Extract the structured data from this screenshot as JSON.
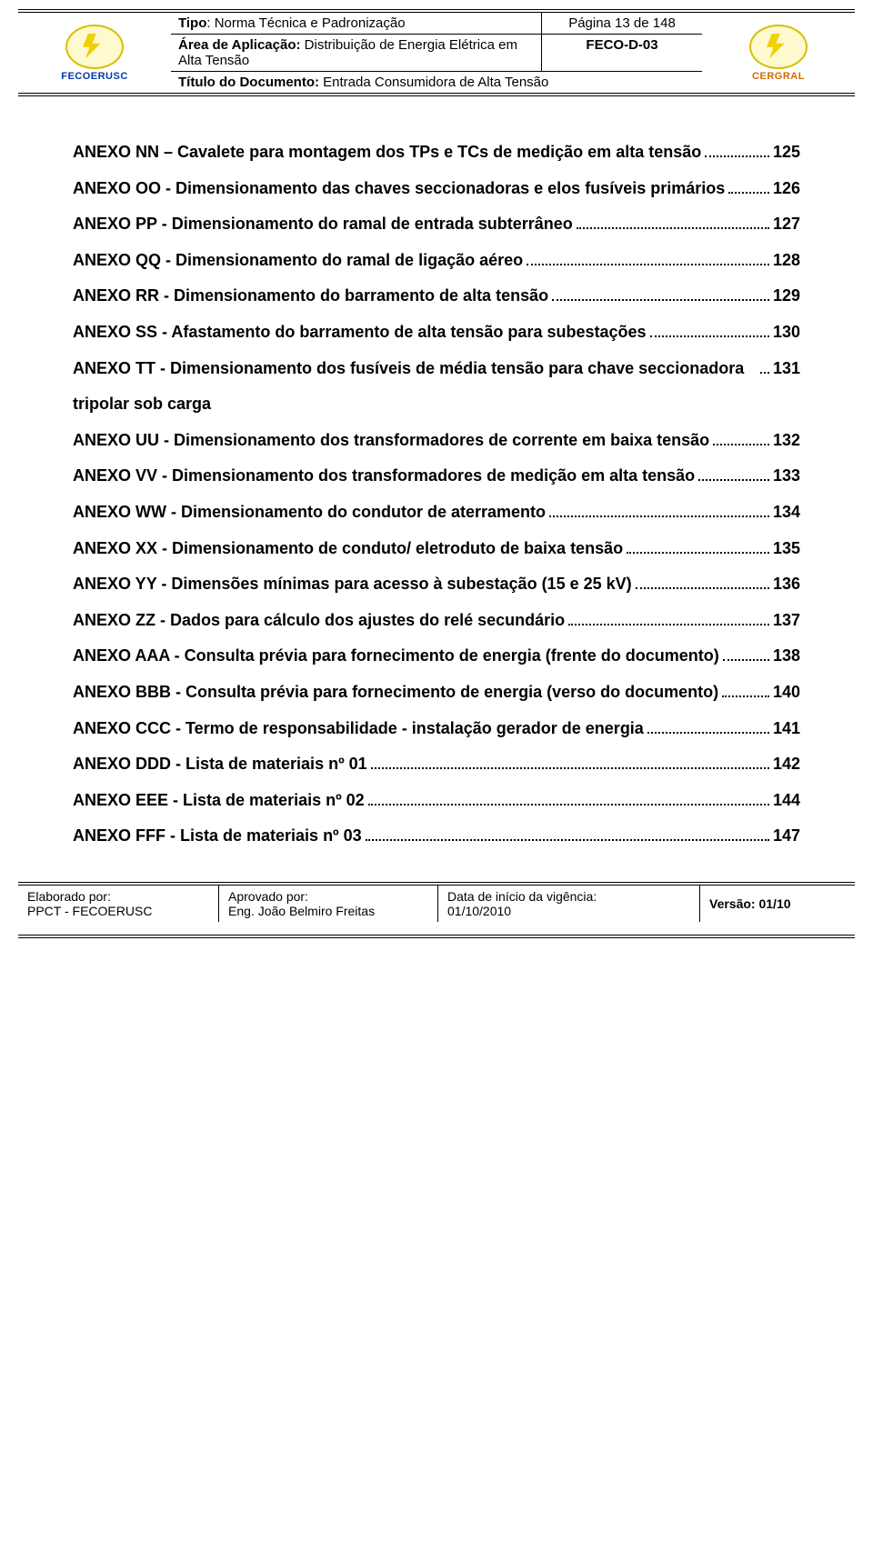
{
  "header": {
    "tipo_label": "Tipo",
    "tipo_value": ": Norma Técnica e Padronização",
    "pagina": "Página 13 de 148",
    "area_label": "Área de Aplicação:",
    "area_value": " Distribuição de Energia Elétrica em Alta Tensão",
    "codigo": "FECO-D-03",
    "titulo_label": "Título do Documento:",
    "titulo_value": " Entrada Consumidora de Alta Tensão",
    "logo_left": "FECOERUSC",
    "logo_right": "CERGRAL"
  },
  "toc": [
    {
      "text": "ANEXO NN – Cavalete para montagem dos TPs e TCs de medição em alta tensão",
      "page": "125"
    },
    {
      "text": "ANEXO OO - Dimensionamento das chaves seccionadoras e elos fusíveis primários",
      "page": "126"
    },
    {
      "text": "ANEXO PP - Dimensionamento do ramal de entrada subterrâneo",
      "page": "127"
    },
    {
      "text": "ANEXO QQ - Dimensionamento do ramal de ligação aéreo",
      "page": "128"
    },
    {
      "text": "ANEXO RR - Dimensionamento do barramento de alta tensão",
      "page": "129"
    },
    {
      "text": "ANEXO SS - Afastamento do barramento de alta tensão para subestações",
      "page": "130"
    },
    {
      "text": "ANEXO TT - Dimensionamento dos fusíveis de média tensão para chave seccionadora tripolar sob carga",
      "page": "131"
    },
    {
      "text": "ANEXO UU - Dimensionamento dos transformadores de corrente em baixa tensão",
      "page": "132"
    },
    {
      "text": "ANEXO VV - Dimensionamento dos transformadores de medição em alta tensão",
      "page": "133"
    },
    {
      "text": "ANEXO WW - Dimensionamento do condutor de aterramento",
      "page": "134"
    },
    {
      "text": "ANEXO XX - Dimensionamento de conduto/ eletroduto de baixa tensão",
      "page": "135"
    },
    {
      "text": "ANEXO YY - Dimensões mínimas para acesso à subestação (15 e 25 kV)",
      "page": "136"
    },
    {
      "text": "ANEXO ZZ - Dados para cálculo dos ajustes do relé secundário",
      "page": "137"
    },
    {
      "text": "ANEXO AAA - Consulta prévia para fornecimento de energia (frente do documento)",
      "page": "138"
    },
    {
      "text": "ANEXO BBB - Consulta prévia para fornecimento de energia (verso do documento)",
      "page": "140"
    },
    {
      "text": "ANEXO CCC - Termo de responsabilidade - instalação gerador de energia",
      "page": "141"
    },
    {
      "text": "ANEXO DDD - Lista de materiais nº 01",
      "page": "142"
    },
    {
      "text": "ANEXO EEE - Lista de materiais nº 02",
      "page": "144"
    },
    {
      "text": "ANEXO FFF - Lista de materiais nº 03",
      "page": "147"
    }
  ],
  "footer": {
    "elab_label": "Elaborado por:",
    "elab_value": "PPCT - FECOERUSC",
    "aprov_label": "Aprovado por:",
    "aprov_value": "Eng. João Belmiro Freitas",
    "data_label": "Data de início da vigência:",
    "data_value": "01/10/2010",
    "versao": "Versão: 01/10"
  },
  "style": {
    "body_text_color": "#000000",
    "bg_color": "#ffffff",
    "accent_blue": "#0038a8",
    "accent_orange": "#d46a00",
    "font_size_body": 18,
    "line_height": 2.2
  }
}
